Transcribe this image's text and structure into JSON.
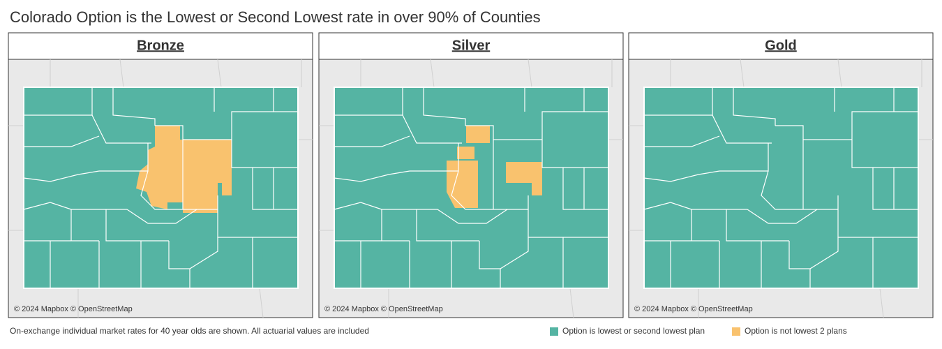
{
  "title": "Colorado Option is the Lowest or Second Lowest rate in over 90% of Counties",
  "panels": [
    {
      "title": "Bronze",
      "attribution": "© 2024 Mapbox © OpenStreetMap"
    },
    {
      "title": "Silver",
      "attribution": "© 2024 Mapbox © OpenStreetMap"
    },
    {
      "title": "Gold",
      "attribution": "© 2024 Mapbox © OpenStreetMap"
    }
  ],
  "footnote": "On-exchange individual market rates for 40 year olds are shown. All actuarial values are included",
  "legend": [
    {
      "label": "Option is lowest or second lowest plan",
      "color": "#55b4a3"
    },
    {
      "label": "Option is not lowest 2 plans",
      "color": "#f9c26e"
    }
  ]
}
